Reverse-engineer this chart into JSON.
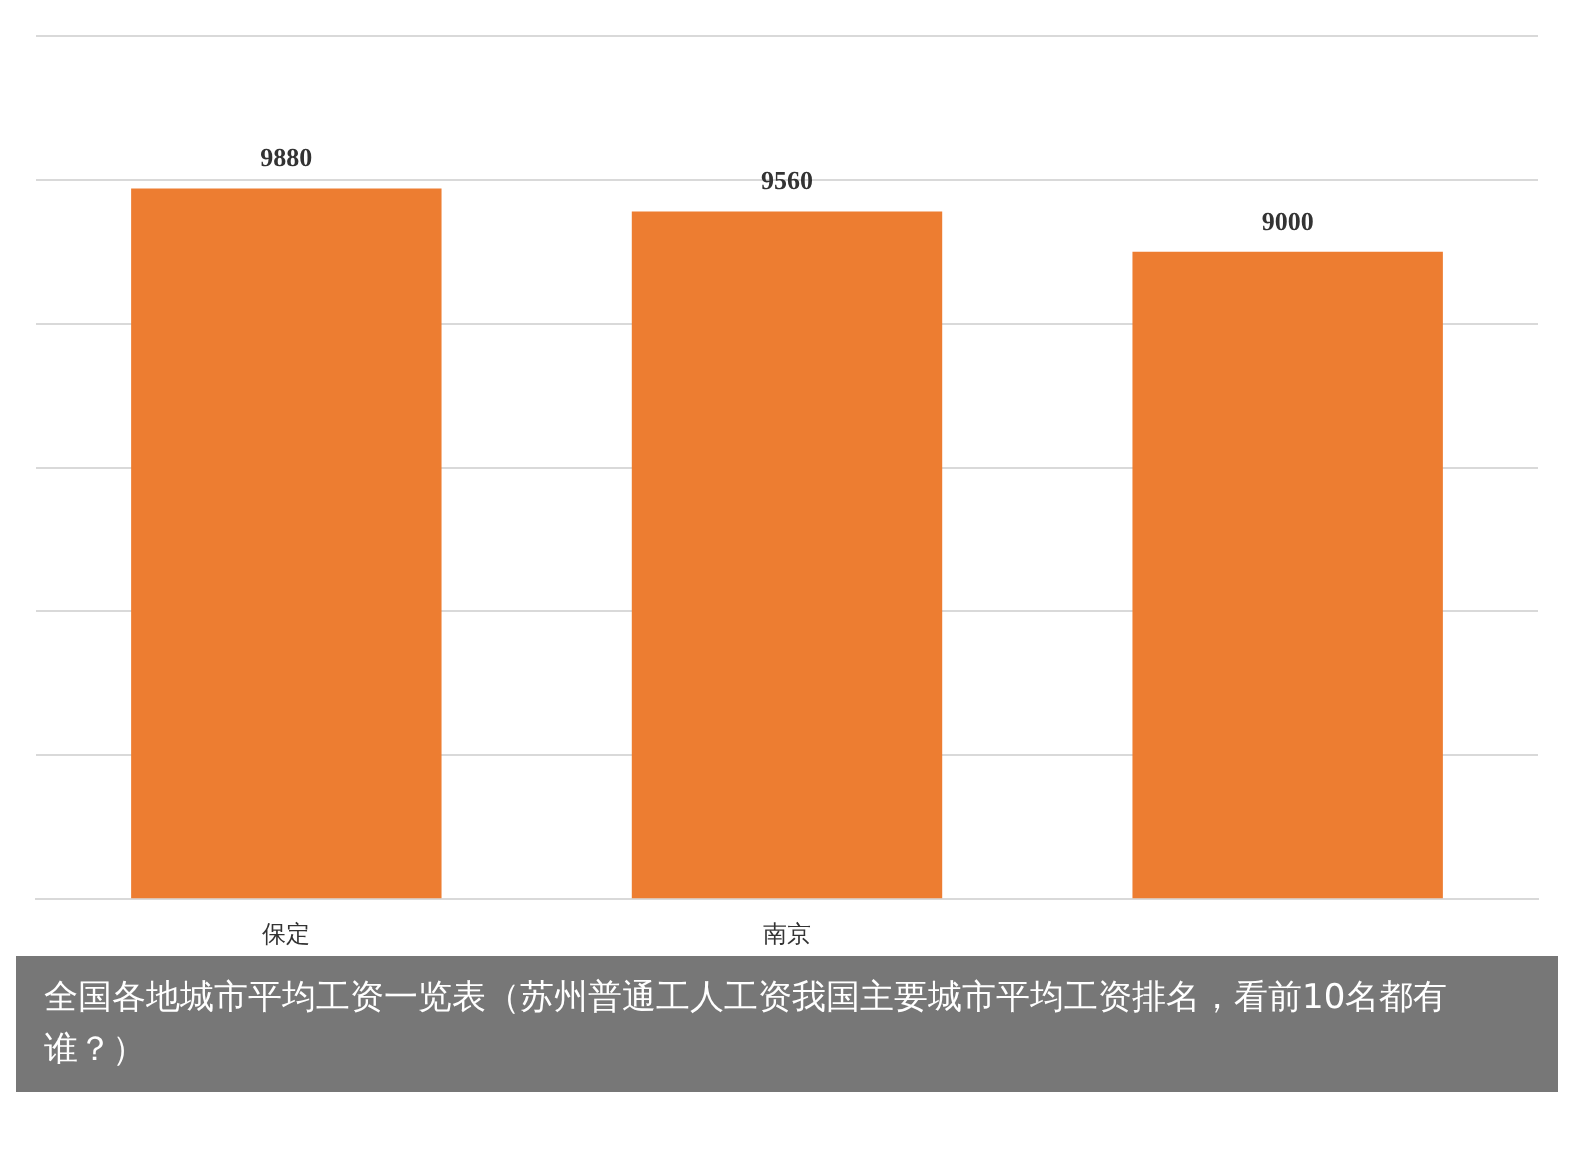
{
  "chart_data": {
    "type": "bar",
    "categories": [
      "保定",
      "南京",
      null
    ],
    "values": [
      9880,
      9560,
      9000
    ],
    "color": "#ed7d31",
    "data_labels": true,
    "ylim": [
      0,
      12000
    ],
    "yticks": [
      {
        "value": 0,
        "label": null
      },
      {
        "value": 2000,
        "label": null
      },
      {
        "value": 4000,
        "label": null
      },
      {
        "value": 6000,
        "label": null
      },
      {
        "value": 8000,
        "label": null
      },
      {
        "value": 10000,
        "label": null
      },
      {
        "value": 12000,
        "label": null
      }
    ],
    "grid": "y",
    "annotations": [
      "全国各地城市平均工资一览表（苏州普通工人工资我国主要城市平均工资排名，看前10名都有谁？）"
    ]
  }
}
